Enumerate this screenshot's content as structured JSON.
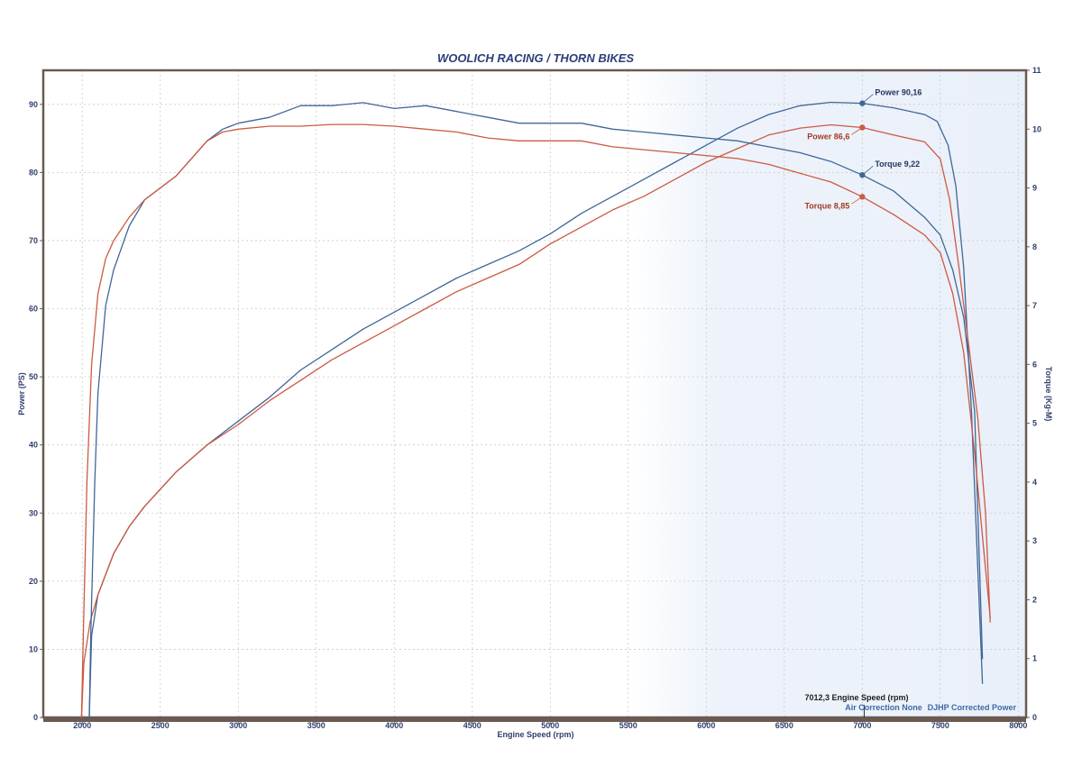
{
  "chart_data": {
    "type": "line",
    "title": "WOOLICH RACING / THORN BIKES",
    "xlabel": "Engine Speed (rpm)",
    "ylabel": "Power (PS)",
    "y2label": "Torque (Kg-M)",
    "xlim": [
      1750,
      8050
    ],
    "ylim": [
      0,
      95
    ],
    "y2lim": [
      0,
      11
    ],
    "x_ticks": [
      2000,
      2500,
      3000,
      3500,
      4000,
      4500,
      5000,
      5500,
      6000,
      6500,
      7000,
      7500,
      8000
    ],
    "y_ticks": [
      0,
      10,
      20,
      30,
      40,
      50,
      60,
      70,
      80,
      90
    ],
    "y2_ticks": [
      0,
      1,
      2,
      3,
      4,
      5,
      6,
      7,
      8,
      9,
      10,
      11
    ],
    "grid": true,
    "colors": {
      "blue": "#3f6797",
      "red": "#cc5a43",
      "frame": "#6b5a52",
      "title": "#2b3f78",
      "axis_text": "#2f3f6e"
    },
    "series": [
      {
        "name": "Power",
        "run": "blue",
        "axis": "left",
        "x": [
          2045,
          2060,
          2100,
          2200,
          2300,
          2400,
          2500,
          2600,
          2800,
          3000,
          3200,
          3400,
          3600,
          3800,
          4000,
          4200,
          4400,
          4600,
          4800,
          5000,
          5200,
          5400,
          5600,
          5800,
          6000,
          6200,
          6400,
          6600,
          6800,
          7000,
          7200,
          7400,
          7480,
          7550,
          7600,
          7650,
          7700,
          7740,
          7770
        ],
        "values": [
          0,
          12,
          18,
          24,
          28,
          31,
          33.5,
          36,
          40,
          43.5,
          47,
          51,
          54,
          57,
          59.5,
          62,
          64.5,
          66.5,
          68.5,
          71,
          74,
          76.5,
          79,
          81.5,
          84,
          86.5,
          88.5,
          89.8,
          90.3,
          90.16,
          89.5,
          88.5,
          87.5,
          84,
          78,
          66,
          45,
          22,
          5
        ]
      },
      {
        "name": "Power",
        "run": "red",
        "axis": "left",
        "x": [
          1995,
          2010,
          2050,
          2100,
          2200,
          2300,
          2400,
          2500,
          2600,
          2800,
          3000,
          3200,
          3400,
          3600,
          3800,
          4000,
          4200,
          4400,
          4600,
          4800,
          5000,
          5200,
          5400,
          5600,
          5800,
          6000,
          6200,
          6400,
          6600,
          6800,
          7000,
          7200,
          7400,
          7500,
          7560,
          7620,
          7680,
          7740,
          7790,
          7820
        ],
        "values": [
          0,
          8,
          14,
          18,
          24,
          28,
          31,
          33.5,
          36,
          40,
          43,
          46.5,
          49.5,
          52.5,
          55,
          57.5,
          60,
          62.5,
          64.5,
          66.5,
          69.5,
          72,
          74.5,
          76.5,
          79,
          81.5,
          83.5,
          85.5,
          86.5,
          87,
          86.6,
          85.5,
          84.5,
          82,
          76,
          66,
          55,
          44,
          30,
          14
        ]
      },
      {
        "name": "Torque",
        "run": "blue",
        "axis": "right",
        "x": [
          2045,
          2055,
          2080,
          2100,
          2150,
          2200,
          2300,
          2400,
          2500,
          2600,
          2700,
          2800,
          2900,
          3000,
          3200,
          3400,
          3600,
          3800,
          4000,
          4200,
          4400,
          4600,
          4800,
          5000,
          5200,
          5400,
          5600,
          5800,
          6000,
          6200,
          6400,
          6600,
          6800,
          7000,
          7200,
          7400,
          7500,
          7580,
          7650,
          7720,
          7770
        ],
        "values": [
          0,
          1.5,
          4,
          5.5,
          7.0,
          7.6,
          8.35,
          8.8,
          9.0,
          9.2,
          9.5,
          9.8,
          10.0,
          10.1,
          10.2,
          10.4,
          10.4,
          10.45,
          10.35,
          10.4,
          10.3,
          10.2,
          10.1,
          10.1,
          10.1,
          10.0,
          9.95,
          9.9,
          9.85,
          9.8,
          9.7,
          9.6,
          9.45,
          9.22,
          8.95,
          8.5,
          8.2,
          7.6,
          6.8,
          5.2,
          1
        ]
      },
      {
        "name": "Torque",
        "run": "red",
        "axis": "right",
        "x": [
          1995,
          2005,
          2030,
          2060,
          2100,
          2150,
          2200,
          2300,
          2400,
          2500,
          2600,
          2700,
          2800,
          2900,
          3000,
          3200,
          3400,
          3600,
          3800,
          4000,
          4200,
          4400,
          4600,
          4800,
          5000,
          5200,
          5400,
          5600,
          5800,
          6000,
          6200,
          6400,
          6600,
          6800,
          7000,
          7200,
          7400,
          7500,
          7580,
          7650,
          7720,
          7780,
          7820
        ],
        "values": [
          0,
          1.2,
          4,
          6,
          7.2,
          7.8,
          8.1,
          8.5,
          8.8,
          9.0,
          9.2,
          9.5,
          9.8,
          9.95,
          10.0,
          10.05,
          10.05,
          10.08,
          10.08,
          10.05,
          10.0,
          9.95,
          9.85,
          9.8,
          9.8,
          9.8,
          9.7,
          9.65,
          9.6,
          9.55,
          9.5,
          9.4,
          9.25,
          9.1,
          8.85,
          8.55,
          8.2,
          7.9,
          7.2,
          6.2,
          4.5,
          2.8,
          1.7
        ]
      }
    ],
    "annotations": [
      {
        "text": "Power 90,16",
        "x": 7000,
        "y": 90.16,
        "axis": "left",
        "color": "blue",
        "anchor": "right-up"
      },
      {
        "text": "Power 86,6",
        "x": 7000,
        "y": 86.6,
        "axis": "left",
        "color": "red",
        "anchor": "left-down"
      },
      {
        "text": "Torque 9,22",
        "x": 7000,
        "y": 9.22,
        "axis": "right",
        "color": "blue",
        "anchor": "right-up"
      },
      {
        "text": "Torque 8,85",
        "x": 7000,
        "y": 8.85,
        "axis": "right",
        "color": "red",
        "anchor": "left-down"
      }
    ],
    "cursor": {
      "x": 7012.3,
      "label": "7012,3 Engine Speed (rpm)"
    },
    "footer_left": "Air Correction None",
    "footer_right": "DJHP Corrected Power"
  }
}
